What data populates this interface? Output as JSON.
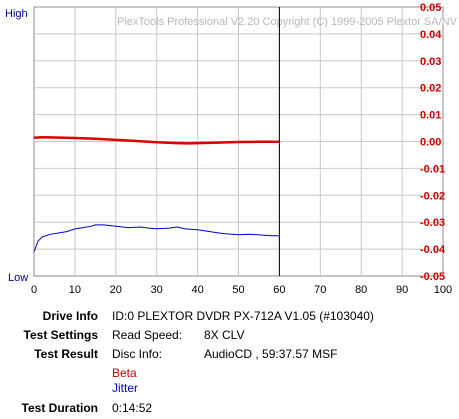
{
  "chart_data": {
    "type": "line",
    "watermark": "PlexTools Professional V2.20 Copyright (C) 1999-2005 Plextor SA/NV",
    "left_axis": {
      "top_label": "High",
      "bottom_label": "Low",
      "color": "#000099"
    },
    "right_axis": {
      "ticks": [
        "0.05",
        "0.04",
        "0.03",
        "0.02",
        "0.01",
        "0.00",
        "-0.01",
        "-0.02",
        "-0.03",
        "-0.04",
        "-0.05"
      ],
      "color": "#cc0000",
      "ylim": [
        -0.05,
        0.05
      ]
    },
    "x_axis": {
      "ticks": [
        "0",
        "10",
        "20",
        "30",
        "40",
        "50",
        "60",
        "70",
        "80",
        "90",
        "100"
      ],
      "xlim": [
        0,
        100
      ]
    },
    "marker_x": 60,
    "grid": true,
    "series": [
      {
        "name": "Beta",
        "color": "#dd0000",
        "axis": "right",
        "x": [
          0,
          2,
          5,
          10,
          15,
          20,
          25,
          30,
          35,
          38,
          40,
          45,
          50,
          55,
          60
        ],
        "y": [
          0.0014,
          0.0016,
          0.0015,
          0.0013,
          0.001,
          0.0006,
          0.0002,
          -0.0003,
          -0.0006,
          -0.0007,
          -0.0006,
          -0.0004,
          -0.0002,
          -0.0001,
          -0.0001
        ]
      },
      {
        "name": "Jitter",
        "color": "#0000cc",
        "axis": "left",
        "x": [
          0,
          1,
          2,
          4,
          6,
          8,
          10,
          12,
          14,
          15,
          17,
          20,
          23,
          26,
          28,
          30,
          33,
          35,
          37,
          40,
          43,
          46,
          50,
          53,
          56,
          58,
          60
        ],
        "y": [
          0.09,
          0.13,
          0.145,
          0.155,
          0.16,
          0.165,
          0.175,
          0.18,
          0.185,
          0.19,
          0.19,
          0.185,
          0.18,
          0.182,
          0.178,
          0.176,
          0.178,
          0.182,
          0.175,
          0.172,
          0.165,
          0.158,
          0.153,
          0.155,
          0.152,
          0.15,
          0.15
        ]
      }
    ]
  },
  "info": {
    "drive_info": {
      "label": "Drive Info",
      "value": "ID:0 PLEXTOR DVDR PX-712A V1.05 (#103040)"
    },
    "test_settings": {
      "label": "Test Settings",
      "key": "Read Speed:",
      "value": "8X CLV"
    },
    "test_result": {
      "label": "Test Result",
      "key": "Disc Info:",
      "value": "AudioCD , 59:37.57 MSF"
    },
    "legend": {
      "beta": "Beta",
      "jitter": "Jitter"
    },
    "test_duration": {
      "label": "Test Duration",
      "value": "0:14:52"
    }
  }
}
